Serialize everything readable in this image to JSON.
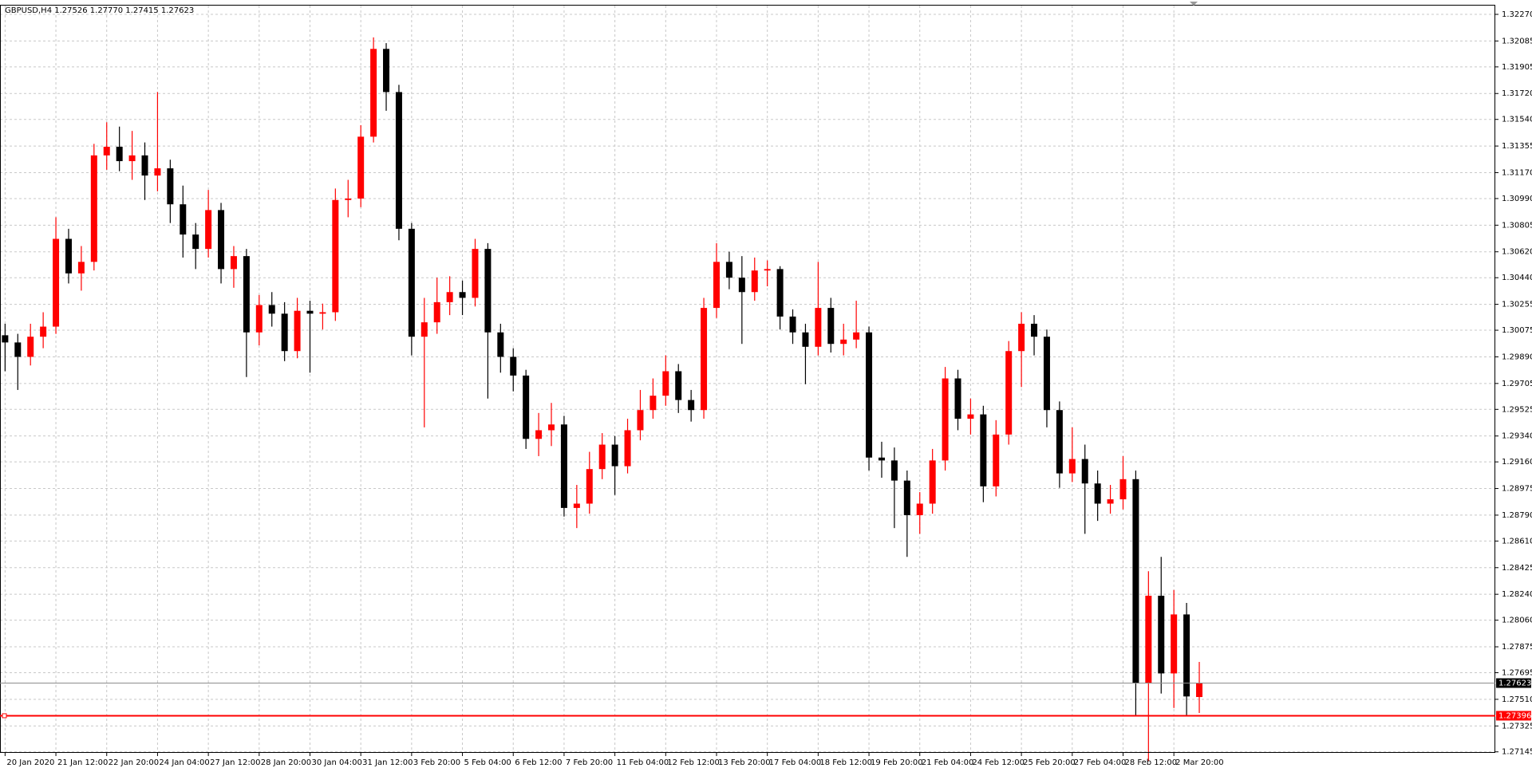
{
  "chart_data": {
    "type": "candlestick",
    "title": "GBPUSD,H4  1.27526 1.27770 1.27415 1.27623",
    "up_color": "#ff0000",
    "down_color": "#000000",
    "grid": true,
    "xlim": [
      -0.4,
      117.3
    ],
    "ylim": [
      1.27138,
      1.32331
    ],
    "candles": [
      [
        1.3004,
        1.3012,
        1.2979,
        1.2999
      ],
      [
        1.2999,
        1.3005,
        1.2966,
        1.2989
      ],
      [
        1.2989,
        1.3012,
        1.2983,
        1.3003
      ],
      [
        1.3003,
        1.302,
        1.2995,
        1.301
      ],
      [
        1.301,
        1.3086,
        1.3005,
        1.3071
      ],
      [
        1.3071,
        1.3078,
        1.304,
        1.3047
      ],
      [
        1.3047,
        1.3066,
        1.3035,
        1.3055
      ],
      [
        1.3055,
        1.3137,
        1.3049,
        1.3129
      ],
      [
        1.3129,
        1.3152,
        1.3119,
        1.3135
      ],
      [
        1.3135,
        1.3149,
        1.3118,
        1.3125
      ],
      [
        1.3125,
        1.3146,
        1.3112,
        1.3129
      ],
      [
        1.3129,
        1.3138,
        1.3098,
        1.3115
      ],
      [
        1.3115,
        1.3173,
        1.3104,
        1.312
      ],
      [
        1.312,
        1.3126,
        1.3082,
        1.3095
      ],
      [
        1.3095,
        1.3108,
        1.3058,
        1.3074
      ],
      [
        1.3074,
        1.3082,
        1.305,
        1.3064
      ],
      [
        1.3064,
        1.3105,
        1.3058,
        1.3091
      ],
      [
        1.3091,
        1.3096,
        1.304,
        1.305
      ],
      [
        1.305,
        1.3066,
        1.3037,
        1.3059
      ],
      [
        1.3059,
        1.3064,
        1.2975,
        1.3006
      ],
      [
        1.3006,
        1.3032,
        1.2997,
        1.3025
      ],
      [
        1.3025,
        1.3034,
        1.301,
        1.3019
      ],
      [
        1.3019,
        1.3027,
        1.2986,
        1.2993
      ],
      [
        1.2993,
        1.303,
        1.2988,
        1.3021
      ],
      [
        1.3021,
        1.3028,
        1.2978,
        1.3019
      ],
      [
        1.3019,
        1.3026,
        1.3008,
        1.302
      ],
      [
        1.302,
        1.3106,
        1.3014,
        1.3098
      ],
      [
        1.3098,
        1.3112,
        1.3086,
        1.3099
      ],
      [
        1.3099,
        1.315,
        1.3093,
        1.3142
      ],
      [
        1.3142,
        1.3211,
        1.3138,
        1.3203
      ],
      [
        1.3203,
        1.3207,
        1.316,
        1.3173
      ],
      [
        1.3173,
        1.3178,
        1.307,
        1.3078
      ],
      [
        1.3078,
        1.3082,
        1.299,
        1.3003
      ],
      [
        1.3003,
        1.303,
        1.294,
        1.3013
      ],
      [
        1.3013,
        1.3044,
        1.3005,
        1.3027
      ],
      [
        1.3027,
        1.3045,
        1.3018,
        1.3034
      ],
      [
        1.3034,
        1.3042,
        1.3018,
        1.303
      ],
      [
        1.303,
        1.3071,
        1.3024,
        1.3064
      ],
      [
        1.3064,
        1.3068,
        1.296,
        1.3006
      ],
      [
        1.3006,
        1.3012,
        1.2978,
        1.2989
      ],
      [
        1.2989,
        1.2995,
        1.2965,
        1.2976
      ],
      [
        1.2976,
        1.298,
        1.2925,
        1.2932
      ],
      [
        1.2932,
        1.295,
        1.292,
        1.2938
      ],
      [
        1.2938,
        1.2957,
        1.2927,
        1.2942
      ],
      [
        1.2942,
        1.2948,
        1.2878,
        1.2884
      ],
      [
        1.2884,
        1.29,
        1.287,
        1.2887
      ],
      [
        1.2887,
        1.2923,
        1.288,
        1.2911
      ],
      [
        1.2911,
        1.2936,
        1.2904,
        1.2928
      ],
      [
        1.2928,
        1.2934,
        1.2893,
        1.2913
      ],
      [
        1.2913,
        1.2946,
        1.2908,
        1.2938
      ],
      [
        1.2938,
        1.2966,
        1.2931,
        1.2952
      ],
      [
        1.2952,
        1.2974,
        1.2946,
        1.2962
      ],
      [
        1.2962,
        1.299,
        1.2955,
        1.2979
      ],
      [
        1.2979,
        1.2984,
        1.295,
        1.2959
      ],
      [
        1.2959,
        1.2966,
        1.2944,
        1.2952
      ],
      [
        1.2952,
        1.303,
        1.2946,
        1.3023
      ],
      [
        1.3023,
        1.3068,
        1.3016,
        1.3055
      ],
      [
        1.3055,
        1.3062,
        1.3036,
        1.3044
      ],
      [
        1.3044,
        1.3059,
        1.2998,
        1.3034
      ],
      [
        1.3034,
        1.3058,
        1.3028,
        1.3049
      ],
      [
        1.3049,
        1.3056,
        1.3038,
        1.305
      ],
      [
        1.305,
        1.3052,
        1.3008,
        1.3017
      ],
      [
        1.3017,
        1.3022,
        1.2998,
        1.3006
      ],
      [
        1.3006,
        1.3012,
        1.297,
        1.2996
      ],
      [
        1.2996,
        1.3055,
        1.299,
        1.3023
      ],
      [
        1.3023,
        1.303,
        1.2992,
        1.2998
      ],
      [
        1.2998,
        1.3012,
        1.299,
        1.3001
      ],
      [
        1.3001,
        1.3028,
        1.2995,
        1.3006
      ],
      [
        1.3006,
        1.301,
        1.291,
        1.2919
      ],
      [
        1.2919,
        1.293,
        1.2905,
        1.2917
      ],
      [
        1.2917,
        1.2926,
        1.287,
        1.2903
      ],
      [
        1.2903,
        1.291,
        1.285,
        1.2879
      ],
      [
        1.2879,
        1.2895,
        1.2866,
        1.2887
      ],
      [
        1.2887,
        1.2925,
        1.288,
        1.2917
      ],
      [
        1.2917,
        1.2982,
        1.291,
        1.2974
      ],
      [
        1.2974,
        1.298,
        1.2938,
        1.2946
      ],
      [
        1.2946,
        1.296,
        1.2935,
        1.2949
      ],
      [
        1.2949,
        1.2955,
        1.2888,
        1.2899
      ],
      [
        1.2899,
        1.2945,
        1.2892,
        1.2935
      ],
      [
        1.2935,
        1.3,
        1.2928,
        1.2993
      ],
      [
        1.2993,
        1.302,
        1.2968,
        1.3012
      ],
      [
        1.3012,
        1.3018,
        1.299,
        1.3003
      ],
      [
        1.3003,
        1.3008,
        1.294,
        1.2952
      ],
      [
        1.2952,
        1.2958,
        1.2898,
        1.2908
      ],
      [
        1.2908,
        1.294,
        1.2902,
        1.2918
      ],
      [
        1.2918,
        1.2928,
        1.2866,
        1.2901
      ],
      [
        1.2901,
        1.291,
        1.2875,
        1.2887
      ],
      [
        1.2887,
        1.29,
        1.288,
        1.289
      ],
      [
        1.289,
        1.292,
        1.2883,
        1.2904
      ],
      [
        1.2904,
        1.291,
        1.274,
        1.2762
      ],
      [
        1.2762,
        1.284,
        1.2708,
        1.2823
      ],
      [
        1.2823,
        1.285,
        1.2755,
        1.2769
      ],
      [
        1.2769,
        1.2827,
        1.2745,
        1.281
      ],
      [
        1.281,
        1.2818,
        1.274,
        1.2753
      ],
      [
        1.27526,
        1.2777,
        1.27415,
        1.27623
      ]
    ],
    "xticks": [
      {
        "value": 0,
        "label": "20 Jan 2020"
      },
      {
        "value": 4,
        "label": "21 Jan 12:00"
      },
      {
        "value": 8,
        "label": "22 Jan 20:00"
      },
      {
        "value": 12,
        "label": "24 Jan 04:00"
      },
      {
        "value": 16,
        "label": "27 Jan 12:00"
      },
      {
        "value": 20,
        "label": "28 Jan 20:00"
      },
      {
        "value": 24,
        "label": "30 Jan 04:00"
      },
      {
        "value": 28,
        "label": "31 Jan 12:00"
      },
      {
        "value": 32,
        "label": "3 Feb 20:00"
      },
      {
        "value": 36,
        "label": "5 Feb 04:00"
      },
      {
        "value": 40,
        "label": "6 Feb 12:00"
      },
      {
        "value": 44,
        "label": "7 Feb 20:00"
      },
      {
        "value": 48,
        "label": "11 Feb 04:00"
      },
      {
        "value": 52,
        "label": "12 Feb 12:00"
      },
      {
        "value": 56,
        "label": "13 Feb 20:00"
      },
      {
        "value": 60,
        "label": "17 Feb 04:00"
      },
      {
        "value": 64,
        "label": "18 Feb 12:00"
      },
      {
        "value": 68,
        "label": "19 Feb 20:00"
      },
      {
        "value": 72,
        "label": "21 Feb 04:00"
      },
      {
        "value": 76,
        "label": "24 Feb 12:00"
      },
      {
        "value": 80,
        "label": "25 Feb 20:00"
      },
      {
        "value": 84,
        "label": "27 Feb 04:00"
      },
      {
        "value": 88,
        "label": "28 Feb 12:00"
      },
      {
        "value": 92,
        "label": "2 Mar 20:00"
      }
    ],
    "yticks": [
      {
        "value": 1.3227,
        "label": "1.32270"
      },
      1.32085,
      1.31905,
      {
        "value": 1.3172,
        "label": "1.31720"
      },
      {
        "value": 1.3154,
        "label": "1.31540"
      },
      1.31355,
      {
        "value": 1.3117,
        "label": "1.31170"
      },
      {
        "value": 1.3099,
        "label": "1.30990"
      },
      1.30805,
      {
        "value": 1.3062,
        "label": "1.30620"
      },
      {
        "value": 1.3044,
        "label": "1.30440"
      },
      1.30255,
      1.30075,
      {
        "value": 1.2989,
        "label": "1.29890"
      },
      1.29705,
      1.29525,
      {
        "value": 1.2934,
        "label": "1.29340"
      },
      {
        "value": 1.2916,
        "label": "1.29160"
      },
      1.28975,
      {
        "value": 1.2879,
        "label": "1.28790"
      },
      {
        "value": 1.2861,
        "label": "1.28610"
      },
      1.28425,
      {
        "value": 1.2824,
        "label": "1.28240"
      },
      {
        "value": 1.2806,
        "label": "1.28060"
      },
      1.27875,
      1.27695,
      {
        "value": 1.2751,
        "label": "1.27510"
      },
      1.27325,
      1.27145
    ],
    "current_price": 1.27623,
    "alert_line": {
      "value": 1.27396,
      "color": "#ff0000"
    }
  }
}
